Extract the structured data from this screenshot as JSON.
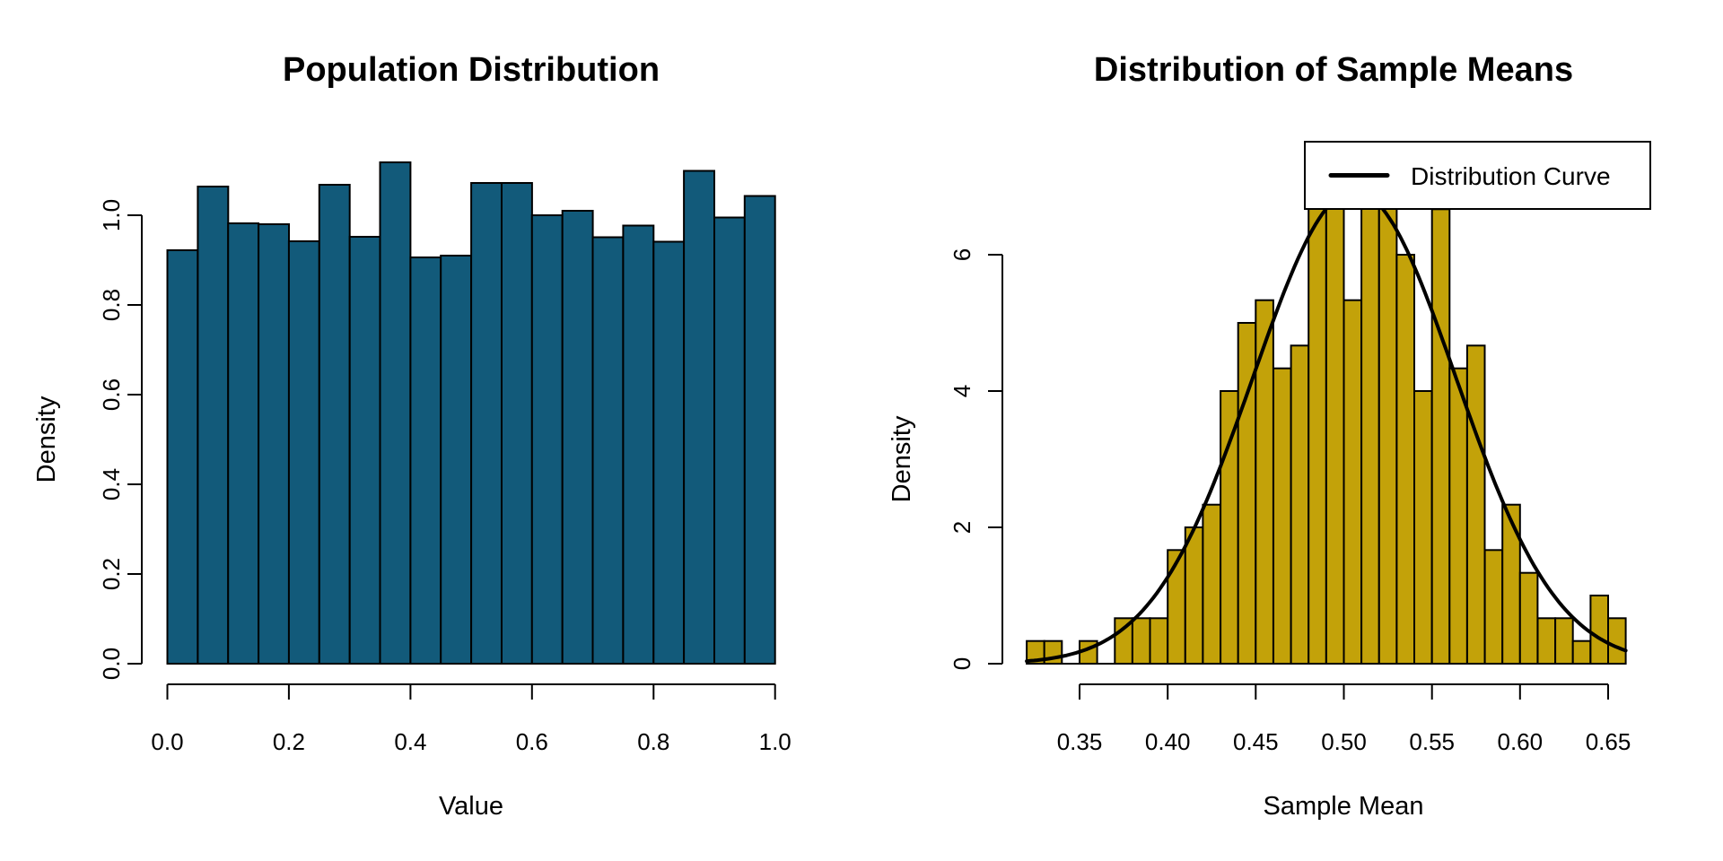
{
  "figure": {
    "background": "#ffffff",
    "text_color": "#000000"
  },
  "chart_data": [
    {
      "type": "bar",
      "kind": "histogram",
      "title": "Population Distribution",
      "xlabel": "Value",
      "ylabel": "Density",
      "bin_start": 0.0,
      "bin_width": 0.05,
      "values": [
        0.922,
        1.064,
        0.982,
        0.98,
        0.942,
        1.068,
        0.952,
        1.118,
        0.906,
        0.91,
        1.072,
        1.072,
        1.0,
        1.01,
        0.951,
        0.977,
        0.941,
        1.099,
        0.995,
        1.043
      ],
      "x_ticks": [
        0.0,
        0.2,
        0.4,
        0.6,
        0.8,
        1.0
      ],
      "x_tick_labels": [
        "0.0",
        "0.2",
        "0.4",
        "0.6",
        "0.8",
        "1.0"
      ],
      "y_ticks": [
        0.0,
        0.2,
        0.4,
        0.6,
        0.8,
        1.0
      ],
      "y_tick_labels": [
        "0.0",
        "0.2",
        "0.4",
        "0.6",
        "0.8",
        "1.0"
      ],
      "xlim": [
        0.0,
        1.0
      ],
      "ylim": [
        0.0,
        1.2
      ],
      "bar_color": "#125A7A",
      "bar_border_color": "#000000",
      "grid": false
    },
    {
      "type": "bar",
      "kind": "histogram+curve",
      "title": "Distribution of Sample Means",
      "xlabel": "Sample Mean",
      "ylabel": "Density",
      "bin_start": 0.32,
      "bin_width": 0.01,
      "values": [
        0.333,
        0.333,
        0,
        0.333,
        0,
        0.667,
        0.667,
        0.667,
        1.667,
        2.0,
        2.333,
        4.0,
        5.0,
        5.333,
        4.333,
        4.667,
        7.0,
        7.333,
        5.333,
        7.0,
        7.333,
        6.0,
        4.0,
        6.667,
        4.333,
        4.667,
        1.667,
        2.333,
        1.333,
        0.667,
        0.667,
        0.333,
        1.0,
        0.667
      ],
      "x_ticks": [
        0.35,
        0.4,
        0.45,
        0.5,
        0.55,
        0.6,
        0.65
      ],
      "x_tick_labels": [
        "0.35",
        "0.40",
        "0.45",
        "0.50",
        "0.55",
        "0.60",
        "0.65"
      ],
      "y_ticks": [
        0,
        2,
        4,
        6
      ],
      "y_tick_labels": [
        "0",
        "2",
        "4",
        "6"
      ],
      "xlim": [
        0.32,
        0.66
      ],
      "ylim": [
        0,
        7.5
      ],
      "bar_color": "#C3A209",
      "bar_border_color": "#000000",
      "grid": false,
      "curve": {
        "label": "Distribution Curve",
        "mean": 0.506,
        "sd": 0.0575,
        "color": "#000000",
        "x_range": [
          0.32,
          0.661
        ]
      },
      "legend": {
        "position": "topright",
        "entries": [
          {
            "label": "Distribution Curve",
            "line_color": "#000000"
          }
        ],
        "box_fill": "#ffffff",
        "box_border": "#000000"
      }
    }
  ]
}
